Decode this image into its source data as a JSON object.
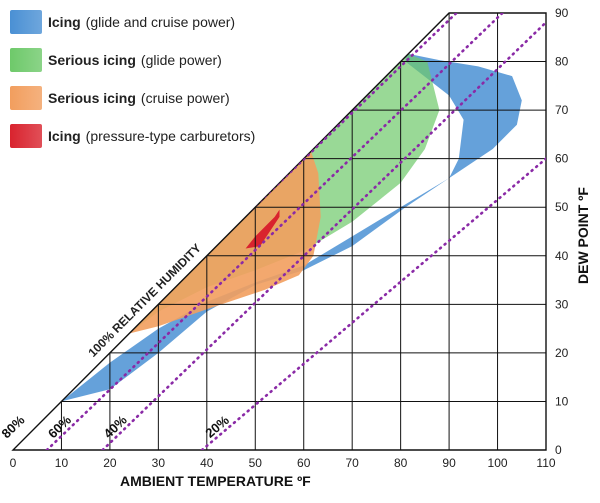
{
  "chart_data": {
    "type": "area",
    "x_axis": {
      "label": "AMBIENT TEMPERATURE  ºF",
      "min": 0,
      "max": 110,
      "ticks": [
        0,
        10,
        20,
        30,
        40,
        50,
        60,
        70,
        80,
        90,
        100,
        110
      ]
    },
    "y_axis": {
      "label": "DEW POINT  ºF",
      "min": 0,
      "max": 90,
      "ticks": [
        0,
        10,
        20,
        30,
        40,
        50,
        60,
        70,
        80,
        90
      ],
      "position": "right"
    },
    "grid": true,
    "diagonal_label": "100% RELATIVE HUMIDITY",
    "humidity_lines": [
      {
        "label": "80%",
        "points": [
          [
            -2.6,
            0
          ],
          [
            91.5,
            90
          ]
        ]
      },
      {
        "label": "60%",
        "points": [
          [
            7,
            0
          ],
          [
            101,
            90
          ]
        ]
      },
      {
        "label": "40%",
        "points": [
          [
            18.5,
            0
          ],
          [
            112,
            90
          ]
        ]
      },
      {
        "label": "20%",
        "points": [
          [
            39,
            0
          ],
          [
            110,
            60
          ]
        ]
      }
    ],
    "series": [
      {
        "name": "Icing (glide and cruise power)",
        "color": "#4a90d4",
        "fill_opacity": 0.85,
        "region": [
          [
            10,
            10
          ],
          [
            20,
            18
          ],
          [
            30,
            25
          ],
          [
            40,
            30.5
          ],
          [
            50,
            34.5
          ],
          [
            60,
            38
          ],
          [
            70,
            44
          ],
          [
            80,
            50
          ],
          [
            90,
            56
          ],
          [
            99,
            62
          ],
          [
            104,
            67
          ],
          [
            105,
            72
          ],
          [
            103,
            77
          ],
          [
            96,
            79
          ],
          [
            88,
            80.3
          ],
          [
            81,
            81.7
          ],
          [
            81,
            80
          ],
          [
            90,
            73
          ],
          [
            93,
            68
          ],
          [
            92,
            60
          ],
          [
            90,
            56
          ],
          [
            81,
            50
          ],
          [
            70,
            42
          ],
          [
            60,
            37
          ],
          [
            50,
            34
          ],
          [
            40,
            28.5
          ],
          [
            30,
            20
          ],
          [
            20,
            12.5
          ],
          [
            10,
            10
          ]
        ]
      },
      {
        "name": "Serious icing (glide power)",
        "color": "#6ec96a",
        "fill_opacity": 0.7,
        "region": [
          [
            24,
            24
          ],
          [
            30,
            28.5
          ],
          [
            40,
            33.5
          ],
          [
            50,
            37
          ],
          [
            60,
            41
          ],
          [
            70,
            47
          ],
          [
            80,
            55
          ],
          [
            85,
            62
          ],
          [
            88,
            70
          ],
          [
            85.5,
            80
          ],
          [
            80,
            82.2
          ],
          [
            80,
            80
          ],
          [
            60,
            60
          ],
          [
            50,
            50
          ],
          [
            40,
            40
          ],
          [
            30,
            30
          ],
          [
            24,
            24
          ]
        ]
      },
      {
        "name": "Serious icing (cruise power)",
        "color": "#f29e5e",
        "fill_opacity": 0.9,
        "region": [
          [
            24,
            24
          ],
          [
            40,
            40
          ],
          [
            50,
            50
          ],
          [
            61.5,
            61.5
          ],
          [
            63,
            57
          ],
          [
            63.5,
            48
          ],
          [
            62,
            40
          ],
          [
            59,
            36
          ],
          [
            52,
            33
          ],
          [
            40,
            29
          ],
          [
            30,
            25.5
          ],
          [
            24,
            24
          ]
        ]
      },
      {
        "name": "Icing (pressure-type carburetors)",
        "color": "#d9232e",
        "fill_opacity": 1,
        "region": [
          [
            48,
            41.5
          ],
          [
            50,
            44
          ],
          [
            52,
            46
          ],
          [
            54,
            48
          ],
          [
            55,
            49.5
          ],
          [
            55,
            48
          ],
          [
            53,
            45
          ],
          [
            51,
            42
          ],
          [
            48,
            41.5
          ]
        ]
      }
    ]
  },
  "legend": [
    {
      "bold": "Icing",
      "rest": "(glide and cruise power)",
      "color": "#4a90d4"
    },
    {
      "bold": "Serious icing",
      "rest": "(glide power)",
      "color": "#6ec96a"
    },
    {
      "bold": "Serious icing",
      "rest": "(cruise power)",
      "color": "#f29e5e"
    },
    {
      "bold": "Icing",
      "rest": "(pressure-type carburetors)",
      "color": "#d9232e"
    }
  ]
}
